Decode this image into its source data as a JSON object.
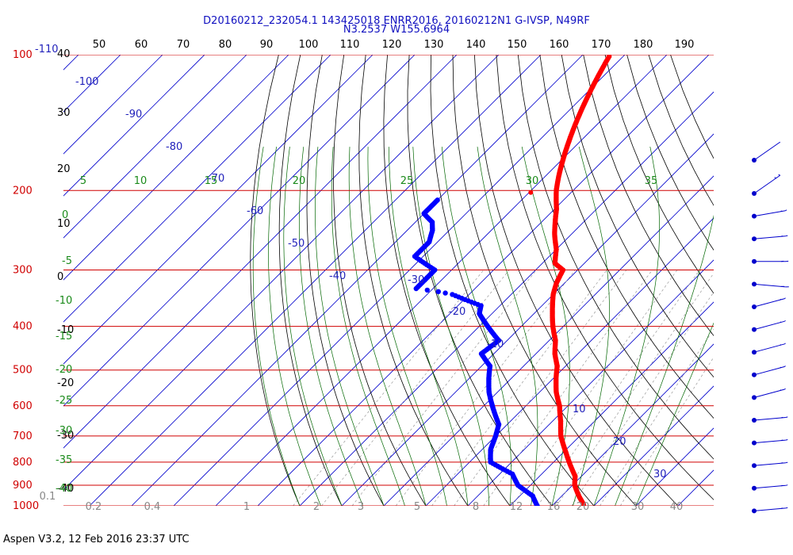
{
  "header": {
    "line1": "D20160212_232054.1 143425018 ENRR2016, 20160212N1 G-IVSP, N49RF",
    "line2": "N3.2537 W155.6964"
  },
  "footer": "Aspen V3.2, 12 Feb 2016  23:37 UTC",
  "colors": {
    "isobar": "#d00000",
    "temperature_trace": "#ff0000",
    "dewpoint_trace": "#0000ff",
    "isotherm": "#0000cc",
    "mixing_ratio": "#999999",
    "adiabat_dry": "#000000",
    "adiabat_moist": "#006600",
    "theta_label": "#000000",
    "pressure_label": "#d00000",
    "temp_label": "#2222bb",
    "mixing_label": "#888888",
    "moist_label": "#1a8a1a",
    "wind_barb": "#0000cc"
  },
  "pressure_labels": [
    "100",
    "200",
    "300",
    "400",
    "500",
    "600",
    "700",
    "800",
    "900",
    "1000"
  ],
  "top_temp_labels": [
    "-110",
    "50",
    "60",
    "70",
    "80",
    "90",
    "100",
    "110",
    "120",
    "130",
    "140",
    "150",
    "160",
    "170",
    "180",
    "190"
  ],
  "theta_labels_left": [
    "40",
    "30",
    "20",
    "10",
    "0",
    "-10",
    "-20",
    "-30",
    "-40"
  ],
  "isotherm_labels": [
    "-100",
    "-90",
    "-80",
    "-70",
    "-60",
    "-50",
    "-40",
    "-30",
    "-20",
    "-10",
    "10",
    "20",
    "30"
  ],
  "moist_labels_top": [
    "5",
    "10",
    "15",
    "20",
    "25",
    "30",
    "35"
  ],
  "moist_labels_left": [
    "0",
    "-5",
    "-10",
    "-15",
    "-20",
    "-25",
    "-30",
    "-35",
    "-40"
  ],
  "mixing_ratio_labels": [
    "0.1",
    "0.2",
    "0.4",
    "1",
    "2",
    "3",
    "5",
    "8",
    "12",
    "16",
    "20",
    "30",
    "40"
  ],
  "chart_data": {
    "type": "scatter",
    "title": "D20160212_232054.1 143425018 ENRR2016, 20160212N1 G-IVSP, N49RF",
    "subtitle": "N3.2537 W155.6964",
    "xlabel": "",
    "ylabel": "",
    "chart_kind": "Skew-T log-P thermodynamic diagram",
    "y_axis": {
      "scale": "log",
      "reversed": true,
      "range": [
        100,
        1000
      ],
      "units": "hPa"
    },
    "series": [
      {
        "key": "temperature",
        "color": "#ff0000",
        "points": [
          [
            100,
            -73.5
          ],
          [
            185,
            -57
          ],
          [
            200,
            -54
          ],
          [
            220,
            -49.5
          ],
          [
            250,
            -44
          ],
          [
            270,
            -40
          ],
          [
            290,
            -37
          ],
          [
            300,
            -33.5
          ],
          [
            320,
            -32
          ],
          [
            340,
            -30
          ],
          [
            360,
            -27.5
          ],
          [
            380,
            -25
          ],
          [
            400,
            -22.5
          ],
          [
            430,
            -18.5
          ],
          [
            460,
            -15.5
          ],
          [
            490,
            -12
          ],
          [
            520,
            -9.5
          ],
          [
            560,
            -6
          ],
          [
            600,
            -2
          ],
          [
            650,
            2
          ],
          [
            700,
            5.5
          ],
          [
            760,
            10.5
          ],
          [
            810,
            14.5
          ],
          [
            860,
            18.5
          ],
          [
            900,
            20.5
          ],
          [
            950,
            24
          ],
          [
            990,
            27
          ],
          [
            1000,
            27.5
          ]
        ]
      },
      {
        "key": "dewpoint",
        "color": "#0000ff",
        "points": [
          [
            210,
            -80
          ],
          [
            225,
            -80
          ],
          [
            235,
            -76
          ],
          [
            245,
            -74
          ],
          [
            260,
            -72
          ],
          [
            280,
            -72
          ],
          [
            290,
            -68
          ],
          [
            300,
            -64
          ],
          [
            320,
            -64
          ],
          [
            330,
            -64
          ],
          [
            335,
            -58
          ],
          [
            340,
            -54
          ],
          [
            360,
            -44.5
          ],
          [
            375,
            -43
          ],
          [
            400,
            -38
          ],
          [
            430,
            -32
          ],
          [
            460,
            -33
          ],
          [
            490,
            -28
          ],
          [
            520,
            -25.5
          ],
          [
            560,
            -22
          ],
          [
            610,
            -17
          ],
          [
            660,
            -12
          ],
          [
            700,
            -10
          ],
          [
            750,
            -8
          ],
          [
            800,
            -5
          ],
          [
            850,
            3
          ],
          [
            900,
            7
          ],
          [
            950,
            13
          ],
          [
            1000,
            16.5
          ]
        ]
      }
    ],
    "wind_barbs_pressure": [
      150,
      200,
      230,
      260,
      290,
      330,
      370,
      410,
      460,
      510,
      560,
      620,
      690,
      770,
      860,
      960
    ]
  }
}
